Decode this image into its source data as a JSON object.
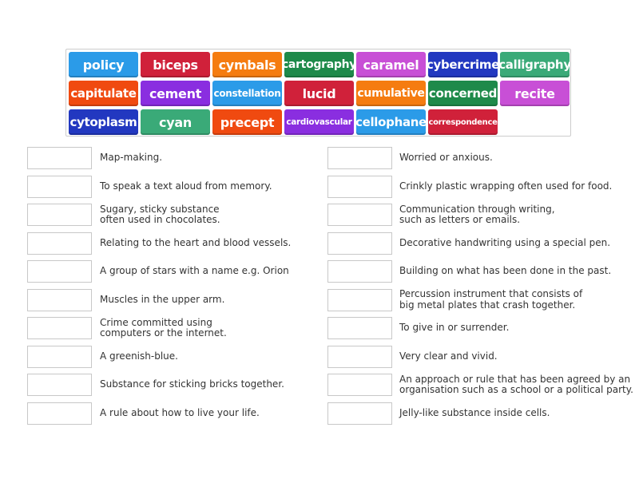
{
  "tiles": [
    {
      "label": "policy",
      "color": "#2b9be8",
      "size": 16
    },
    {
      "label": "biceps",
      "color": "#d0213a",
      "size": 16
    },
    {
      "label": "cymbals",
      "color": "#f57c10",
      "size": 16
    },
    {
      "label": "cartography",
      "color": "#1e8a4a",
      "size": 14
    },
    {
      "label": "caramel",
      "color": "#c84fd6",
      "size": 16
    },
    {
      "label": "cybercrime",
      "color": "#2238c0",
      "size": 15
    },
    {
      "label": "calligraphy",
      "color": "#3aaa78",
      "size": 15
    },
    {
      "label": "capitulate",
      "color": "#f04a10",
      "size": 15
    },
    {
      "label": "cement",
      "color": "#8a2ee0",
      "size": 16
    },
    {
      "label": "constellation",
      "color": "#2b9be8",
      "size": 12
    },
    {
      "label": "lucid",
      "color": "#d0213a",
      "size": 16
    },
    {
      "label": "cumulative",
      "color": "#f57c10",
      "size": 14
    },
    {
      "label": "concerned",
      "color": "#1e8a4a",
      "size": 15
    },
    {
      "label": "recite",
      "color": "#c84fd6",
      "size": 16
    },
    {
      "label": "cytoplasm",
      "color": "#2238c0",
      "size": 15
    },
    {
      "label": "cyan",
      "color": "#3aaa78",
      "size": 16
    },
    {
      "label": "precept",
      "color": "#f04a10",
      "size": 16
    },
    {
      "label": "cardiovascular",
      "color": "#8a2ee0",
      "size": 10.5
    },
    {
      "label": "cellophane",
      "color": "#2b9be8",
      "size": 15
    },
    {
      "label": "correspondence",
      "color": "#d0213a",
      "size": 10
    }
  ],
  "left": [
    "Map-making.",
    "To speak a text aloud from memory.",
    "Sugary, sticky substance\noften used in chocolates.",
    "Relating to the heart and blood vessels.",
    "A group of stars with a name e.g. Orion",
    "Muscles in the upper arm.",
    "Crime committed using\ncomputers or the internet.",
    "A greenish-blue.",
    "Substance for sticking bricks together.",
    "A rule about how to live your life."
  ],
  "right": [
    "Worried or anxious.",
    "Crinkly plastic wrapping often used for food.",
    "Communication through writing,\nsuch as letters or emails.",
    "Decorative handwriting using a special pen.",
    "Building on what has been done in the past.",
    "Percussion instrument that consists of\nbig metal plates that crash together.",
    "To give in or surrender.",
    "Very clear and vivid.",
    "An approach or rule that has been agreed by an\norganisation such as a school or a political party.",
    "Jelly-like substance inside cells."
  ]
}
